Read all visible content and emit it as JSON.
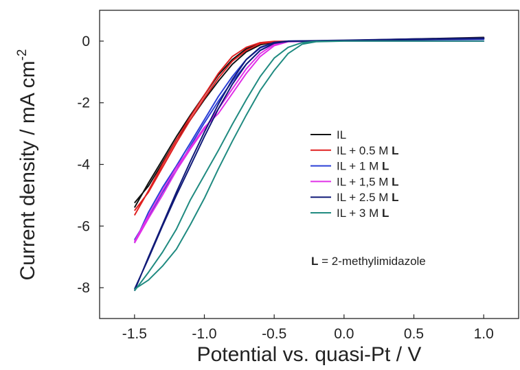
{
  "chart_data": {
    "type": "line",
    "xlabel": "Potential vs. quasi-Pt / V",
    "ylabel_main": "Current density / mA cm",
    "ylabel_sup": "-2",
    "xlim": [
      -1.75,
      1.25
    ],
    "ylim": [
      -9,
      1
    ],
    "x_ticks": [
      -1.5,
      -1.0,
      -0.5,
      0.0,
      0.5,
      1.0
    ],
    "x_tick_labels": [
      "-1.5",
      "-1.0",
      "-0.5",
      "0.0",
      "0.5",
      "1.0"
    ],
    "y_ticks": [
      0,
      -2,
      -4,
      -6,
      -8
    ],
    "y_tick_labels": [
      "0",
      "-2",
      "-4",
      "-6",
      "-8"
    ],
    "grid": false,
    "legend_position": "center-right",
    "annotation": {
      "bold": "L",
      "text": " = 2-methylimidazole"
    },
    "series": [
      {
        "name": "IL",
        "name_bold": "",
        "color": "#111111",
        "forward": [
          [
            -1.5,
            -5.4
          ],
          [
            -1.4,
            -4.6
          ],
          [
            -1.3,
            -3.85
          ],
          [
            -1.2,
            -3.1
          ],
          [
            -1.1,
            -2.4
          ],
          [
            -1.0,
            -1.75
          ],
          [
            -0.9,
            -1.1
          ],
          [
            -0.8,
            -0.6
          ],
          [
            -0.7,
            -0.25
          ],
          [
            -0.6,
            -0.08
          ],
          [
            -0.5,
            -0.02
          ],
          [
            -0.3,
            0.0
          ],
          [
            0.0,
            0.02
          ],
          [
            0.5,
            0.07
          ],
          [
            1.0,
            0.12
          ]
        ],
        "backward": [
          [
            1.0,
            0.1
          ],
          [
            0.5,
            0.06
          ],
          [
            0.0,
            0.02
          ],
          [
            -0.3,
            0.0
          ],
          [
            -0.5,
            -0.03
          ],
          [
            -0.6,
            -0.12
          ],
          [
            -0.7,
            -0.35
          ],
          [
            -0.8,
            -0.75
          ],
          [
            -0.9,
            -1.3
          ],
          [
            -1.0,
            -1.9
          ],
          [
            -1.1,
            -2.55
          ],
          [
            -1.2,
            -3.2
          ],
          [
            -1.3,
            -3.95
          ],
          [
            -1.4,
            -4.7
          ],
          [
            -1.5,
            -5.25
          ]
        ]
      },
      {
        "name": "IL + 0.5 M ",
        "name_bold": "L",
        "color": "#e02020",
        "forward": [
          [
            -1.5,
            -5.65
          ],
          [
            -1.4,
            -4.85
          ],
          [
            -1.3,
            -4.0
          ],
          [
            -1.2,
            -3.2
          ],
          [
            -1.1,
            -2.45
          ],
          [
            -1.0,
            -1.75
          ],
          [
            -0.9,
            -1.05
          ],
          [
            -0.8,
            -0.5
          ],
          [
            -0.7,
            -0.2
          ],
          [
            -0.6,
            -0.05
          ],
          [
            -0.5,
            -0.01
          ],
          [
            -0.3,
            0.0
          ],
          [
            0.0,
            0.02
          ],
          [
            0.5,
            0.06
          ],
          [
            1.0,
            0.1
          ]
        ],
        "backward": [
          [
            1.0,
            0.08
          ],
          [
            0.5,
            0.05
          ],
          [
            0.0,
            0.02
          ],
          [
            -0.3,
            0.0
          ],
          [
            -0.5,
            -0.02
          ],
          [
            -0.6,
            -0.08
          ],
          [
            -0.7,
            -0.3
          ],
          [
            -0.8,
            -0.65
          ],
          [
            -0.9,
            -1.2
          ],
          [
            -1.0,
            -1.85
          ],
          [
            -1.1,
            -2.55
          ],
          [
            -1.2,
            -3.3
          ],
          [
            -1.3,
            -4.1
          ],
          [
            -1.4,
            -4.9
          ],
          [
            -1.5,
            -5.5
          ]
        ]
      },
      {
        "name": "IL + 1 M ",
        "name_bold": "L",
        "color": "#2a3fd6",
        "forward": [
          [
            -1.5,
            -6.55
          ],
          [
            -1.4,
            -5.55
          ],
          [
            -1.3,
            -4.75
          ],
          [
            -1.2,
            -4.05
          ],
          [
            -1.1,
            -3.3
          ],
          [
            -1.0,
            -2.55
          ],
          [
            -0.9,
            -1.8
          ],
          [
            -0.8,
            -1.15
          ],
          [
            -0.7,
            -0.6
          ],
          [
            -0.6,
            -0.22
          ],
          [
            -0.5,
            -0.05
          ],
          [
            -0.4,
            0.0
          ],
          [
            0.0,
            0.02
          ],
          [
            0.5,
            0.05
          ],
          [
            1.0,
            0.08
          ]
        ],
        "backward": [
          [
            1.0,
            0.06
          ],
          [
            0.5,
            0.04
          ],
          [
            0.0,
            0.01
          ],
          [
            -0.4,
            -0.01
          ],
          [
            -0.5,
            -0.08
          ],
          [
            -0.6,
            -0.3
          ],
          [
            -0.7,
            -0.75
          ],
          [
            -0.8,
            -1.3
          ],
          [
            -0.9,
            -1.95
          ],
          [
            -1.0,
            -2.65
          ],
          [
            -1.1,
            -3.4
          ],
          [
            -1.2,
            -4.2
          ],
          [
            -1.3,
            -4.9
          ],
          [
            -1.4,
            -5.7
          ],
          [
            -1.5,
            -6.45
          ]
        ]
      },
      {
        "name": "IL + 1,5 M ",
        "name_bold": "L",
        "color": "#e030e8",
        "forward": [
          [
            -1.5,
            -6.55
          ],
          [
            -1.4,
            -5.75
          ],
          [
            -1.3,
            -5.0
          ],
          [
            -1.2,
            -4.2
          ],
          [
            -1.1,
            -3.5
          ],
          [
            -1.0,
            -2.85
          ],
          [
            -0.9,
            -2.2
          ],
          [
            -0.8,
            -1.55
          ],
          [
            -0.7,
            -0.9
          ],
          [
            -0.6,
            -0.4
          ],
          [
            -0.5,
            -0.1
          ],
          [
            -0.4,
            -0.01
          ],
          [
            0.0,
            0.0
          ],
          [
            0.5,
            0.0
          ],
          [
            1.0,
            0.0
          ]
        ],
        "backward": [
          [
            1.0,
            0.0
          ],
          [
            0.5,
            0.0
          ],
          [
            0.0,
            0.0
          ],
          [
            -0.4,
            -0.02
          ],
          [
            -0.5,
            -0.15
          ],
          [
            -0.6,
            -0.5
          ],
          [
            -0.7,
            -1.05
          ],
          [
            -0.8,
            -1.7
          ],
          [
            -0.9,
            -2.35
          ],
          [
            -1.0,
            -2.8
          ],
          [
            -1.1,
            -3.45
          ],
          [
            -1.2,
            -4.1
          ],
          [
            -1.3,
            -4.85
          ],
          [
            -1.4,
            -5.65
          ],
          [
            -1.5,
            -6.5
          ]
        ]
      },
      {
        "name": "IL + 2.5 M ",
        "name_bold": "L",
        "color": "#101a78",
        "forward": [
          [
            -1.5,
            -8.1
          ],
          [
            -1.4,
            -7.0
          ],
          [
            -1.3,
            -5.95
          ],
          [
            -1.2,
            -4.9
          ],
          [
            -1.1,
            -3.9
          ],
          [
            -1.0,
            -2.95
          ],
          [
            -0.9,
            -2.05
          ],
          [
            -0.8,
            -1.25
          ],
          [
            -0.7,
            -0.6
          ],
          [
            -0.6,
            -0.2
          ],
          [
            -0.5,
            -0.04
          ],
          [
            -0.4,
            0.0
          ],
          [
            0.0,
            0.03
          ],
          [
            0.5,
            0.07
          ],
          [
            1.0,
            0.1
          ]
        ],
        "backward": [
          [
            1.0,
            0.08
          ],
          [
            0.5,
            0.05
          ],
          [
            0.0,
            0.02
          ],
          [
            -0.4,
            -0.01
          ],
          [
            -0.5,
            -0.07
          ],
          [
            -0.6,
            -0.3
          ],
          [
            -0.7,
            -0.75
          ],
          [
            -0.8,
            -1.4
          ],
          [
            -0.9,
            -2.2
          ],
          [
            -1.0,
            -3.1
          ],
          [
            -1.1,
            -4.05
          ],
          [
            -1.2,
            -5.0
          ],
          [
            -1.3,
            -6.0
          ],
          [
            -1.4,
            -7.05
          ],
          [
            -1.5,
            -8.05
          ]
        ]
      },
      {
        "name": "IL + 3 M ",
        "name_bold": "L",
        "color": "#1f8a80",
        "forward": [
          [
            -1.5,
            -8.1
          ],
          [
            -1.4,
            -7.5
          ],
          [
            -1.3,
            -6.85
          ],
          [
            -1.2,
            -6.1
          ],
          [
            -1.1,
            -5.15
          ],
          [
            -1.0,
            -4.35
          ],
          [
            -0.9,
            -3.55
          ],
          [
            -0.8,
            -2.7
          ],
          [
            -0.7,
            -1.9
          ],
          [
            -0.6,
            -1.15
          ],
          [
            -0.5,
            -0.55
          ],
          [
            -0.4,
            -0.2
          ],
          [
            -0.3,
            -0.05
          ],
          [
            -0.2,
            -0.01
          ],
          [
            0.0,
            0.0
          ],
          [
            0.5,
            0.0
          ],
          [
            1.0,
            0.0
          ]
        ],
        "backward": [
          [
            1.0,
            0.0
          ],
          [
            0.5,
            0.0
          ],
          [
            0.0,
            0.0
          ],
          [
            -0.2,
            -0.02
          ],
          [
            -0.3,
            -0.1
          ],
          [
            -0.4,
            -0.4
          ],
          [
            -0.5,
            -0.95
          ],
          [
            -0.6,
            -1.6
          ],
          [
            -0.7,
            -2.4
          ],
          [
            -0.8,
            -3.25
          ],
          [
            -0.9,
            -4.15
          ],
          [
            -1.0,
            -5.1
          ],
          [
            -1.1,
            -5.95
          ],
          [
            -1.2,
            -6.75
          ],
          [
            -1.3,
            -7.3
          ],
          [
            -1.4,
            -7.75
          ],
          [
            -1.5,
            -8.05
          ]
        ]
      }
    ]
  }
}
